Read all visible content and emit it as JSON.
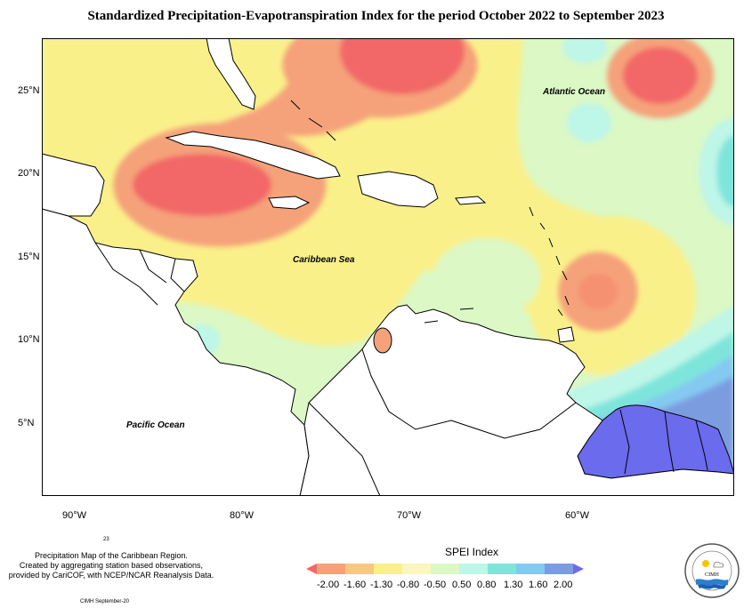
{
  "title": "Standardized Precipitation-Evapotranspiration Index for the period October 2022 to September 2023",
  "map": {
    "labels": {
      "caribbean_sea": "Caribbean Sea",
      "atlantic_ocean": "Atlantic Ocean",
      "pacific_ocean": "Pacific Ocean"
    },
    "lat_ticks": [
      "25°N",
      "20°N",
      "15°N",
      "10°N",
      "5°N"
    ],
    "lon_ticks": [
      "90°W",
      "80°W",
      "70°W",
      "60°W"
    ]
  },
  "credit": {
    "line1": "Precipitation Map of the Caribbean Region.",
    "line2": "Created by aggregating station based observations,",
    "line3": "provided by CariCOF, with NCEP/NCAR Reanalysis Data.",
    "small_number": "23",
    "footer": "CIMH September-20"
  },
  "legend": {
    "title": "SPEI Index",
    "labels": [
      "-2.00",
      "-1.60",
      "-1.30",
      "-0.80",
      "-0.50",
      "0.50",
      "0.80",
      "1.30",
      "1.60",
      "2.00"
    ],
    "colors": [
      "#f26767",
      "#f5a27a",
      "#f7c883",
      "#faf08a",
      "#fbf6bf",
      "#dbf8c5",
      "#bef6e8",
      "#7fe5db",
      "#84c9f0",
      "#7c9ce0",
      "#6b6bed"
    ]
  },
  "logo": {
    "text": "CIMH"
  },
  "colors": {
    "dry_strong": "#f26767",
    "dry_moderate": "#f5a27a",
    "dry_mild": "#faf08a",
    "near_normal": "#dbf8c5",
    "wet_mild": "#bef6e8",
    "wet_moderate": "#84c9f0",
    "wet_strong": "#6b6bed"
  }
}
